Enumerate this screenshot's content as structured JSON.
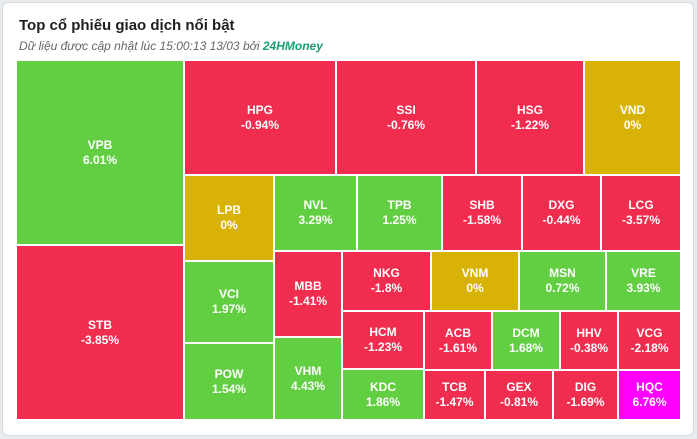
{
  "widget": {
    "title": "Top cổ phiếu giao dịch nổi bật",
    "subtitle_prefix": "Dữ liệu được cập nhật lúc 15:00:13 13/03 bởi ",
    "brand": "24HMoney"
  },
  "colors": {
    "up": "#62cf43",
    "down": "#f02d4f",
    "flat": "#d9b206",
    "ceiling": "#ff00ff"
  },
  "stocks": [
    {
      "symbol": "VPB",
      "change": "6.01%",
      "trend": "up"
    },
    {
      "symbol": "STB",
      "change": "-3.85%",
      "trend": "down"
    },
    {
      "symbol": "HPG",
      "change": "-0.94%",
      "trend": "down"
    },
    {
      "symbol": "SSI",
      "change": "-0.76%",
      "trend": "down"
    },
    {
      "symbol": "HSG",
      "change": "-1.22%",
      "trend": "down"
    },
    {
      "symbol": "VND",
      "change": "0%",
      "trend": "flat"
    },
    {
      "symbol": "LPB",
      "change": "0%",
      "trend": "flat"
    },
    {
      "symbol": "NVL",
      "change": "3.29%",
      "trend": "up"
    },
    {
      "symbol": "TPB",
      "change": "1.25%",
      "trend": "up"
    },
    {
      "symbol": "SHB",
      "change": "-1.58%",
      "trend": "down"
    },
    {
      "symbol": "DXG",
      "change": "-0.44%",
      "trend": "down"
    },
    {
      "symbol": "LCG",
      "change": "-3.57%",
      "trend": "down"
    },
    {
      "symbol": "VCI",
      "change": "1.97%",
      "trend": "up"
    },
    {
      "symbol": "POW",
      "change": "1.54%",
      "trend": "up"
    },
    {
      "symbol": "MBB",
      "change": "-1.41%",
      "trend": "down"
    },
    {
      "symbol": "VHM",
      "change": "4.43%",
      "trend": "up"
    },
    {
      "symbol": "NKG",
      "change": "-1.8%",
      "trend": "down"
    },
    {
      "symbol": "VNM",
      "change": "0%",
      "trend": "flat"
    },
    {
      "symbol": "MSN",
      "change": "0.72%",
      "trend": "up"
    },
    {
      "symbol": "VRE",
      "change": "3.93%",
      "trend": "up"
    },
    {
      "symbol": "HCM",
      "change": "-1.23%",
      "trend": "down"
    },
    {
      "symbol": "KDC",
      "change": "1.86%",
      "trend": "up"
    },
    {
      "symbol": "ACB",
      "change": "-1.61%",
      "trend": "down"
    },
    {
      "symbol": "DCM",
      "change": "1.68%",
      "trend": "up"
    },
    {
      "symbol": "HHV",
      "change": "-0.38%",
      "trend": "down"
    },
    {
      "symbol": "VCG",
      "change": "-2.18%",
      "trend": "down"
    },
    {
      "symbol": "TCB",
      "change": "-1.47%",
      "trend": "down"
    },
    {
      "symbol": "GEX",
      "change": "-0.81%",
      "trend": "down"
    },
    {
      "symbol": "DIG",
      "change": "-1.69%",
      "trend": "down"
    },
    {
      "symbol": "HQC",
      "change": "6.76%",
      "trend": "ceiling"
    }
  ]
}
